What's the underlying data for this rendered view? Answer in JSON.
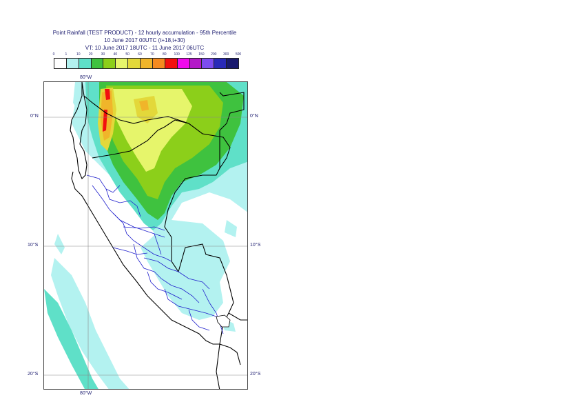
{
  "title": {
    "line1": "Point Rainfall (TEST PRODUCT) - 12 hourly accumulation - 95th Percentile",
    "line2": "10 June 2017 00UTC (t+18,t+30)",
    "line3": "VT: 10 June 2017 18UTC - 11 June 2017 06UTC"
  },
  "legend": {
    "thresholds": [
      "0",
      "1",
      "10",
      "20",
      "30",
      "40",
      "50",
      "60",
      "70",
      "80",
      "100",
      "125",
      "150",
      "200",
      "300",
      "500"
    ],
    "colors": [
      "#ffffff",
      "#b3f2f0",
      "#5fe0c8",
      "#3fc23f",
      "#8ccf1a",
      "#e6f56b",
      "#e3d83a",
      "#f0b52a",
      "#f58a1f",
      "#f20f0f",
      "#f00aec",
      "#b419c8",
      "#7d4cf0",
      "#2a2ab8",
      "#1a1a6e"
    ]
  },
  "map": {
    "lat_labels": [
      "0°N",
      "10°S",
      "20°S"
    ],
    "lon_labels": [
      "80°W",
      "80°W"
    ],
    "extent": {
      "lon_min": -82,
      "lon_max": -66,
      "lat_min": -21,
      "lat_max": 3
    }
  }
}
